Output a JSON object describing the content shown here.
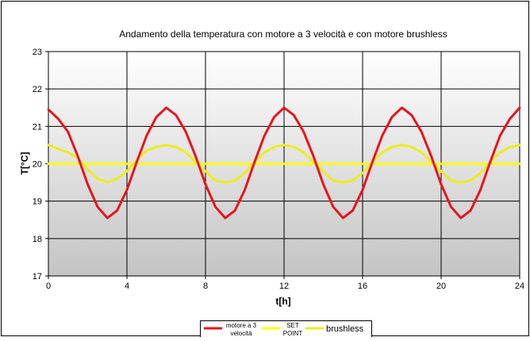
{
  "chart_data": {
    "type": "line",
    "title": "Andamento della temperatura con motore a 3 velocità e con motore brushless",
    "xlabel": "t[h]",
    "ylabel": "T[°C]",
    "xlim": [
      0,
      24
    ],
    "ylim": [
      17,
      23
    ],
    "x_ticks": [
      0,
      4,
      8,
      12,
      16,
      20,
      24
    ],
    "y_ticks": [
      17,
      18,
      19,
      20,
      21,
      22,
      23
    ],
    "grid": true,
    "legend_position": "bottom",
    "series": [
      {
        "name": "motore a 3 velocità",
        "color": "#e8141e",
        "x": [
          0,
          0.5,
          1,
          1.5,
          2,
          2.5,
          3,
          3.5,
          4,
          4.5,
          5,
          5.5,
          6,
          6.5,
          7,
          7.5,
          8,
          8.5,
          9,
          9.5,
          10,
          10.5,
          11,
          11.5,
          12,
          12.5,
          13,
          13.5,
          14,
          14.5,
          15,
          15.5,
          16,
          16.5,
          17,
          17.5,
          18,
          18.5,
          19,
          19.5,
          20,
          20.5,
          21,
          21.5,
          22,
          22.5,
          23,
          23.5,
          24
        ],
        "values": [
          21.45,
          21.2,
          20.85,
          20.2,
          19.45,
          18.85,
          18.55,
          18.75,
          19.3,
          20.05,
          20.75,
          21.25,
          21.5,
          21.3,
          20.85,
          20.2,
          19.45,
          18.85,
          18.55,
          18.75,
          19.3,
          20.05,
          20.75,
          21.25,
          21.5,
          21.3,
          20.85,
          20.2,
          19.45,
          18.85,
          18.55,
          18.75,
          19.3,
          20.05,
          20.75,
          21.25,
          21.5,
          21.3,
          20.85,
          20.2,
          19.45,
          18.85,
          18.55,
          18.75,
          19.3,
          20.05,
          20.75,
          21.2,
          21.5
        ]
      },
      {
        "name": "SET POINT",
        "color": "#ffff00",
        "x": [
          0,
          24
        ],
        "values": [
          20,
          20
        ]
      },
      {
        "name": "brushless",
        "color": "#ecec1e",
        "x": [
          0,
          0.5,
          1,
          1.5,
          2,
          2.5,
          3,
          3.5,
          4,
          4.5,
          5,
          5.5,
          6,
          6.5,
          7,
          7.5,
          8,
          8.5,
          9,
          9.5,
          10,
          10.5,
          11,
          11.5,
          12,
          12.5,
          13,
          13.5,
          14,
          14.5,
          15,
          15.5,
          16,
          16.5,
          17,
          17.5,
          18,
          18.5,
          19,
          19.5,
          20,
          20.5,
          21,
          21.5,
          22,
          22.5,
          23,
          23.5,
          24
        ],
        "values": [
          20.5,
          20.4,
          20.3,
          20.15,
          19.85,
          19.6,
          19.5,
          19.6,
          19.8,
          20.1,
          20.35,
          20.45,
          20.5,
          20.45,
          20.3,
          20.05,
          19.8,
          19.55,
          19.5,
          19.55,
          19.75,
          20.05,
          20.3,
          20.45,
          20.5,
          20.45,
          20.3,
          20.05,
          19.8,
          19.55,
          19.5,
          19.55,
          19.75,
          20.05,
          20.3,
          20.45,
          20.5,
          20.45,
          20.3,
          20.05,
          19.8,
          19.55,
          19.5,
          19.55,
          19.75,
          20.05,
          20.3,
          20.45,
          20.5
        ]
      }
    ],
    "legend_labels": {
      "motore": [
        "motore a 3",
        "velocità"
      ],
      "setpoint": [
        "SET",
        "POINT"
      ],
      "brushless": [
        "brushless"
      ]
    }
  }
}
